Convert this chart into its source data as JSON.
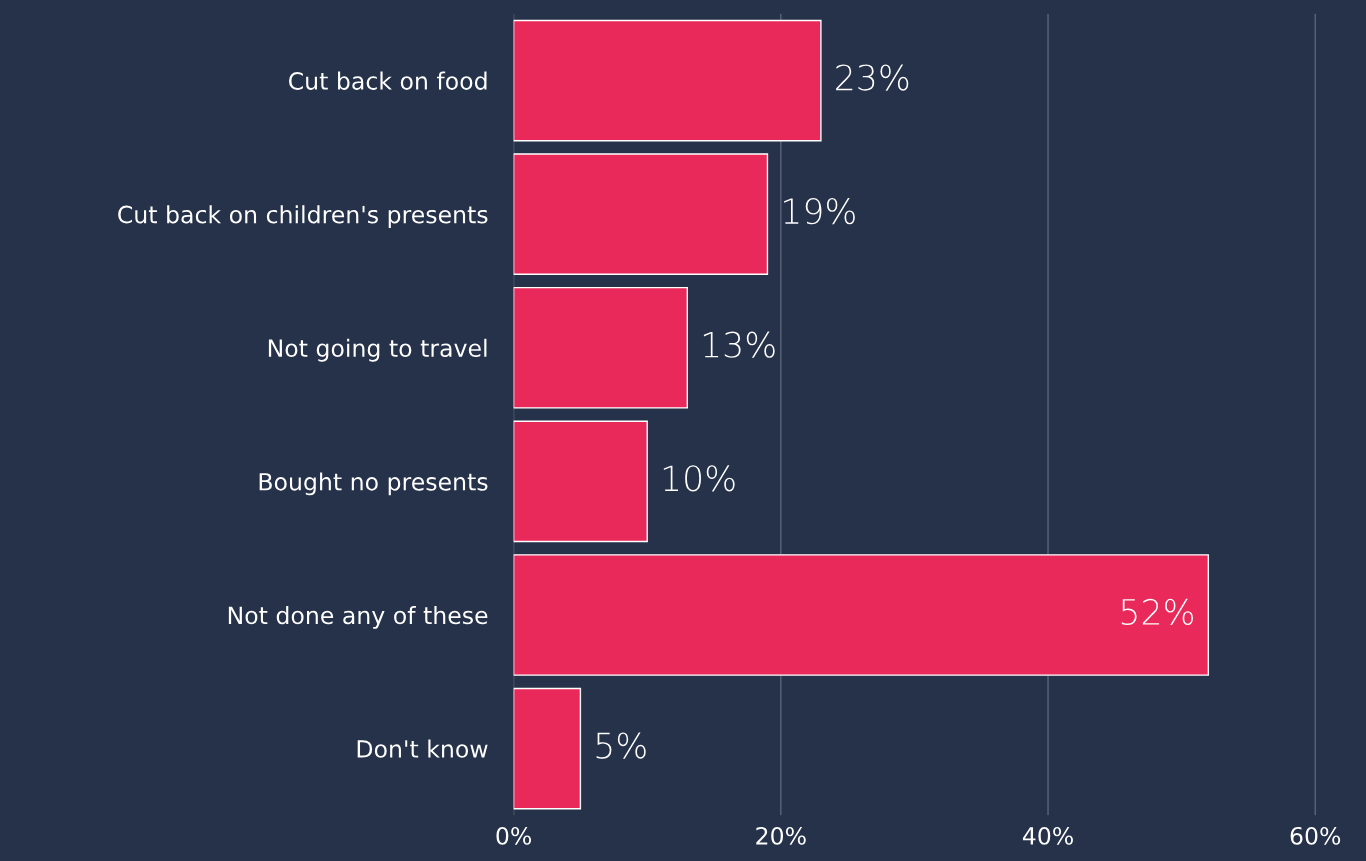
{
  "chart_data": {
    "type": "bar",
    "orientation": "horizontal",
    "categories": [
      "Cut back on food",
      "Cut back on children's presents",
      "Not going to travel",
      "Bought no presents",
      "Not done any of these",
      "Don't know"
    ],
    "values": [
      23,
      19,
      13,
      10,
      52,
      5
    ],
    "value_labels": [
      "23%",
      "19%",
      "13%",
      "10%",
      "52%",
      "5%"
    ],
    "color": "#e8295a",
    "xlim": [
      0,
      63.8
    ],
    "xticks": [
      {
        "value": 0,
        "label": "0%"
      },
      {
        "value": 20,
        "label": "20%"
      },
      {
        "value": 40,
        "label": "40%"
      },
      {
        "value": 60,
        "label": "60%"
      }
    ],
    "grid": "x"
  }
}
